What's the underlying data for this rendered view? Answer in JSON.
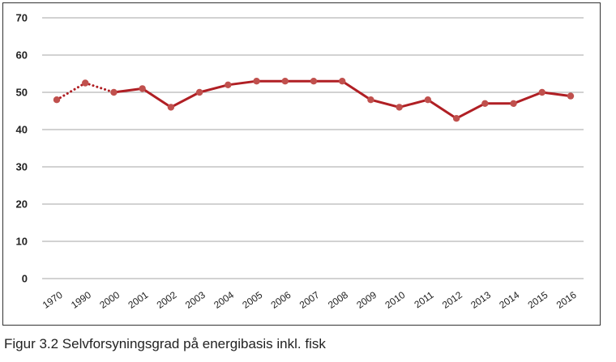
{
  "chart_data": {
    "type": "line",
    "categories": [
      "1970",
      "1990",
      "2000",
      "2001",
      "2002",
      "2003",
      "2004",
      "2005",
      "2006",
      "2007",
      "2008",
      "2009",
      "2010",
      "2011",
      "2012",
      "2013",
      "2014",
      "2015",
      "2016"
    ],
    "series": [
      {
        "values": [
          48,
          52.5,
          50,
          51,
          46,
          50,
          52,
          53,
          53,
          53,
          53,
          48,
          46,
          48,
          43,
          47,
          47,
          50,
          49
        ]
      }
    ],
    "dotted_segments_until_index": 2,
    "yticks": [
      0,
      10,
      20,
      30,
      40,
      50,
      60,
      70
    ],
    "ylim": [
      0,
      70
    ],
    "grid": true,
    "title": "",
    "xlabel": "",
    "ylabel": "",
    "line_color": "#b01f24",
    "marker_color": "#c0504d",
    "grid_color": "#a6a6a6"
  },
  "caption": "Figur 3.2 Selvforsyningsgrad på energibasis inkl. fisk"
}
